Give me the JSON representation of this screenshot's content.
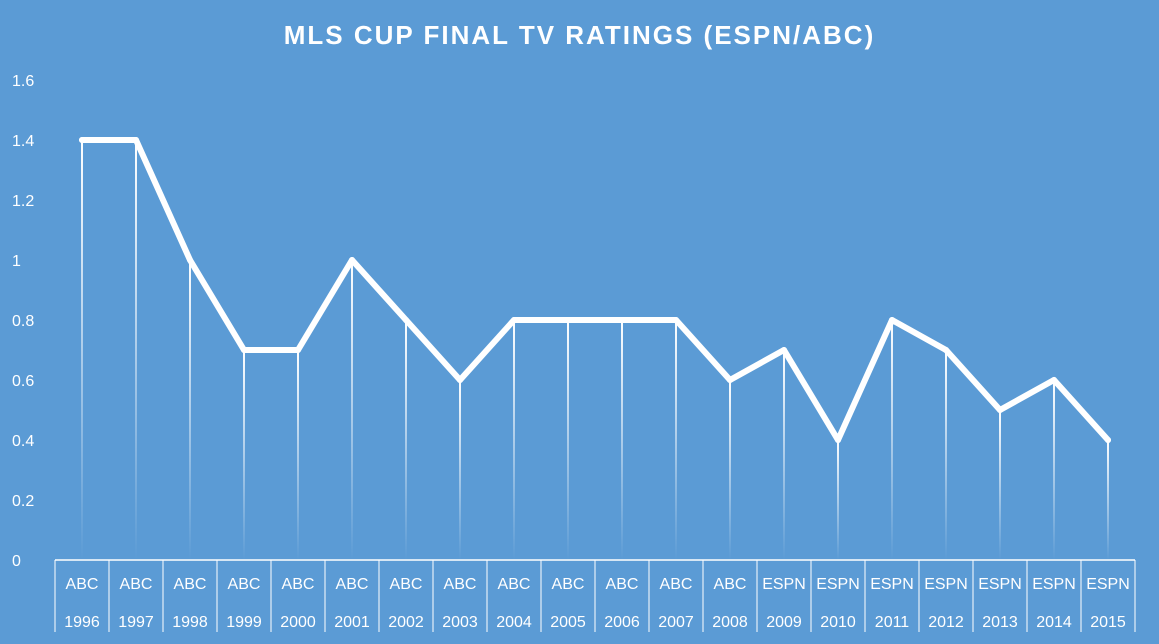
{
  "chart_data": {
    "type": "line",
    "title": "MLS CUP FINAL TV RATINGS (ESPN/ABC)",
    "xlabel": "",
    "ylabel": "",
    "ylim": [
      0,
      1.6
    ],
    "yticks": [
      "0",
      "0.2",
      "0.4",
      "0.6",
      "0.8",
      "1",
      "1.2",
      "1.4",
      "1.6"
    ],
    "categories": [
      {
        "network": "ABC",
        "year": "1996"
      },
      {
        "network": "ABC",
        "year": "1997"
      },
      {
        "network": "ABC",
        "year": "1998"
      },
      {
        "network": "ABC",
        "year": "1999"
      },
      {
        "network": "ABC",
        "year": "2000"
      },
      {
        "network": "ABC",
        "year": "2001"
      },
      {
        "network": "ABC",
        "year": "2002"
      },
      {
        "network": "ABC",
        "year": "2003"
      },
      {
        "network": "ABC",
        "year": "2004"
      },
      {
        "network": "ABC",
        "year": "2005"
      },
      {
        "network": "ABC",
        "year": "2006"
      },
      {
        "network": "ABC",
        "year": "2007"
      },
      {
        "network": "ABC",
        "year": "2008"
      },
      {
        "network": "ESPN",
        "year": "2009"
      },
      {
        "network": "ESPN",
        "year": "2010"
      },
      {
        "network": "ESPN",
        "year": "2011"
      },
      {
        "network": "ESPN",
        "year": "2012"
      },
      {
        "network": "ESPN",
        "year": "2013"
      },
      {
        "network": "ESPN",
        "year": "2014"
      },
      {
        "network": "ESPN",
        "year": "2015"
      }
    ],
    "series": [
      {
        "values": [
          1.4,
          1.4,
          1.0,
          0.7,
          0.7,
          1.0,
          0.8,
          0.6,
          0.8,
          0.8,
          0.8,
          0.8,
          0.6,
          0.7,
          0.4,
          0.8,
          0.7,
          0.5,
          0.6,
          0.4
        ]
      }
    ],
    "grid": false,
    "drop_lines": true,
    "colors": {
      "background": "#5b9bd5",
      "line": "#ffffff",
      "text": "#ffffff"
    }
  }
}
